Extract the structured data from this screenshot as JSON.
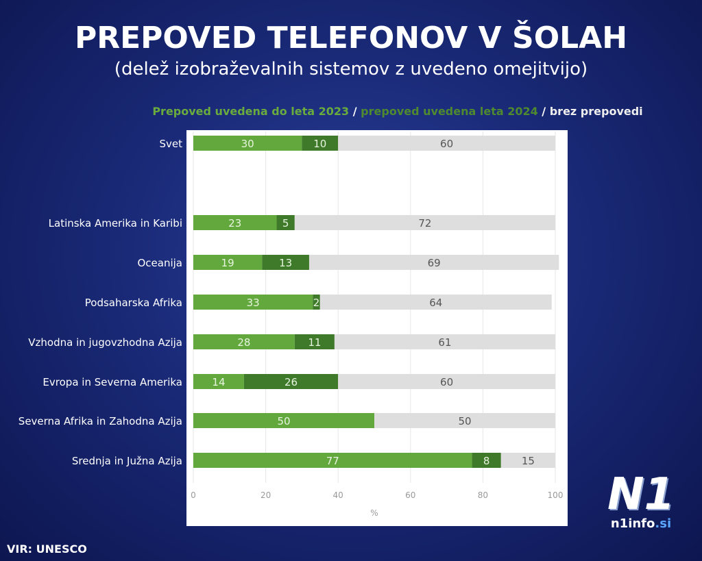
{
  "title": "PREPOVED TELEFONOV V ŠOLAH",
  "subtitle": "(delež izobraževalnih sistemov z uvedeno omejitvijo)",
  "source": "VIR: UNESCO",
  "logo": {
    "mark": "N1",
    "site": "n1info",
    "tld": ".si"
  },
  "chart_data": {
    "type": "bar",
    "orientation": "horizontal",
    "stacked": true,
    "legend_line": {
      "parts": [
        "Prepoved uvedena do leta 2023",
        " / ",
        "prepoved uvedena leta 2024",
        " / ",
        "brez prepovedi"
      ]
    },
    "categories": [
      "Svet",
      "Latinska Amerika in Karibi",
      "Oceanija",
      "Podsaharska Afrika",
      "Vzhodna in jugovzhodna Azija",
      "Evropa in Severna Amerika",
      "Severna Afrika in Zahodna Azija",
      "Srednja in Južna Azija"
    ],
    "series": [
      {
        "name": "Prepoved uvedena do leta 2023",
        "color": "#62a83c",
        "values": [
          30,
          23,
          19,
          33,
          28,
          14,
          50,
          77
        ]
      },
      {
        "name": "prepoved uvedena leta 2024",
        "color": "#3f7a2a",
        "values": [
          10,
          5,
          13,
          2,
          11,
          26,
          null,
          8
        ]
      },
      {
        "name": "brez prepovedi",
        "color": "#dedede",
        "values": [
          60,
          72,
          69,
          64,
          61,
          60,
          50,
          15
        ]
      }
    ],
    "xlabel": "%",
    "xlim": [
      0,
      100
    ],
    "xticks": [
      0,
      20,
      40,
      60,
      80,
      100
    ],
    "grid": true,
    "legend_colors": {
      "2023": "#6aab3e",
      "2024": "#4f8a2e",
      "none": "#e8e8e8",
      "sep": "#ffffff"
    }
  }
}
